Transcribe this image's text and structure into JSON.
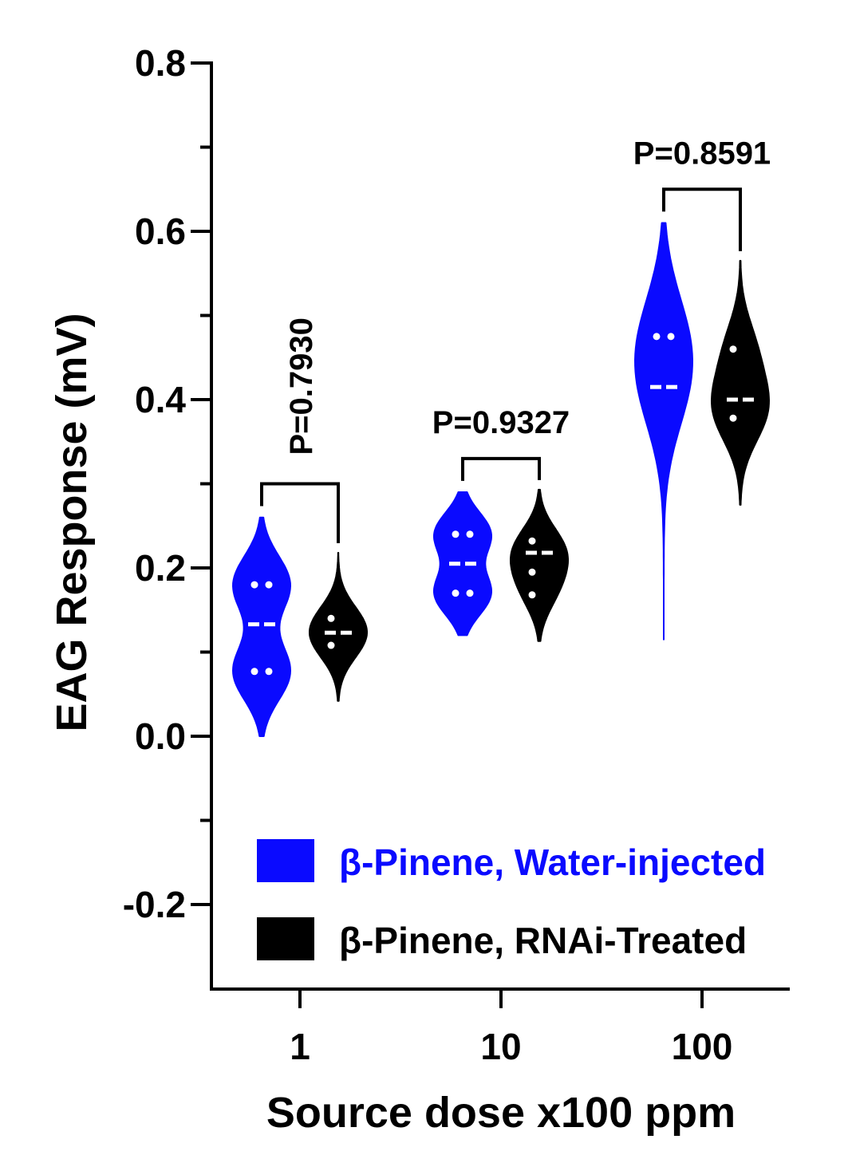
{
  "chart_data": {
    "type": "violin",
    "xlabel": "Source dose x100 ppm",
    "ylabel": "EAG Response (mV)",
    "ylim": [
      -0.3,
      0.8
    ],
    "yticks": [
      {
        "value": -0.2,
        "label": "-0.2"
      },
      {
        "value": 0.0,
        "label": "0.0"
      },
      {
        "value": 0.2,
        "label": "0.2"
      },
      {
        "value": 0.4,
        "label": "0.4"
      },
      {
        "value": 0.6,
        "label": "0.6"
      },
      {
        "value": 0.8,
        "label": "0.8"
      }
    ],
    "categories": [
      "1",
      "10",
      "100"
    ],
    "legend_position": "bottom-right",
    "series": [
      {
        "name": "β-Pinene, Water-injected",
        "color": "#0a0aff",
        "groups": [
          {
            "min": 0.0,
            "max": 0.26,
            "median": 0.133,
            "points": [
              0.18,
              0.18,
              0.077,
              0.077
            ]
          },
          {
            "min": 0.12,
            "max": 0.29,
            "median": 0.205,
            "points": [
              0.24,
              0.24,
              0.17,
              0.17
            ]
          },
          {
            "min": 0.115,
            "max": 0.61,
            "median": 0.415,
            "points": [
              0.475,
              0.475,
              0.415,
              0.415
            ]
          }
        ]
      },
      {
        "name": "β-Pinene, RNAi-Treated",
        "color": "#000000",
        "groups": [
          {
            "min": 0.042,
            "max": 0.218,
            "median": 0.123,
            "points": [
              0.14,
              0.123,
              0.108
            ]
          },
          {
            "min": 0.113,
            "max": 0.293,
            "median": 0.218,
            "points": [
              0.232,
              0.218,
              0.195,
              0.168
            ]
          },
          {
            "min": 0.275,
            "max": 0.565,
            "median": 0.4,
            "points": [
              0.46,
              0.4,
              0.378
            ]
          }
        ]
      }
    ],
    "comparisons": [
      {
        "category": "1",
        "label": "P=0.7930",
        "bracket_y": 0.3,
        "rotated": true
      },
      {
        "category": "10",
        "label": "P=0.9327",
        "bracket_y": 0.33,
        "rotated": false
      },
      {
        "category": "100",
        "label": "P=0.8591",
        "bracket_y": 0.65,
        "rotated": false
      }
    ]
  }
}
